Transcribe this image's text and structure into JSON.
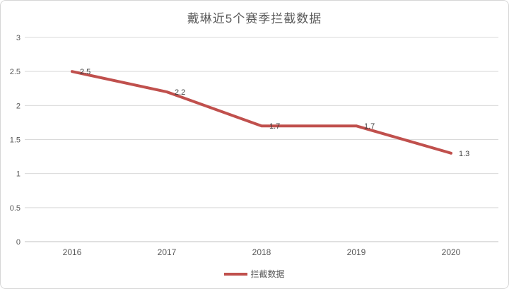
{
  "chart": {
    "title": "戴琳近5个赛季拦截数据",
    "legend": {
      "label": "拦截数据"
    }
  },
  "chart_data": {
    "type": "line",
    "title": "戴琳近5个赛季拦截数据",
    "categories": [
      "2016",
      "2017",
      "2018",
      "2019",
      "2020"
    ],
    "series": [
      {
        "name": "拦截数据",
        "values": [
          2.5,
          2.2,
          1.7,
          1.7,
          1.3
        ]
      }
    ],
    "data_labels": [
      "2.5",
      "2.2",
      "1.7",
      "1.7",
      "1.3"
    ],
    "xlabel": "",
    "ylabel": "",
    "ylim": [
      0,
      3
    ],
    "ytick_step": 0.5,
    "ytick_labels": [
      "0",
      "0.5",
      "1",
      "1.5",
      "2",
      "2.5",
      "3"
    ],
    "grid": true,
    "legend_position": "bottom",
    "colors": {
      "series_line": "#c0504d",
      "gridline": "#d9d9d9",
      "axis_line": "#c0c0c0",
      "tick_text": "#595959",
      "data_label_text": "#404040"
    }
  }
}
